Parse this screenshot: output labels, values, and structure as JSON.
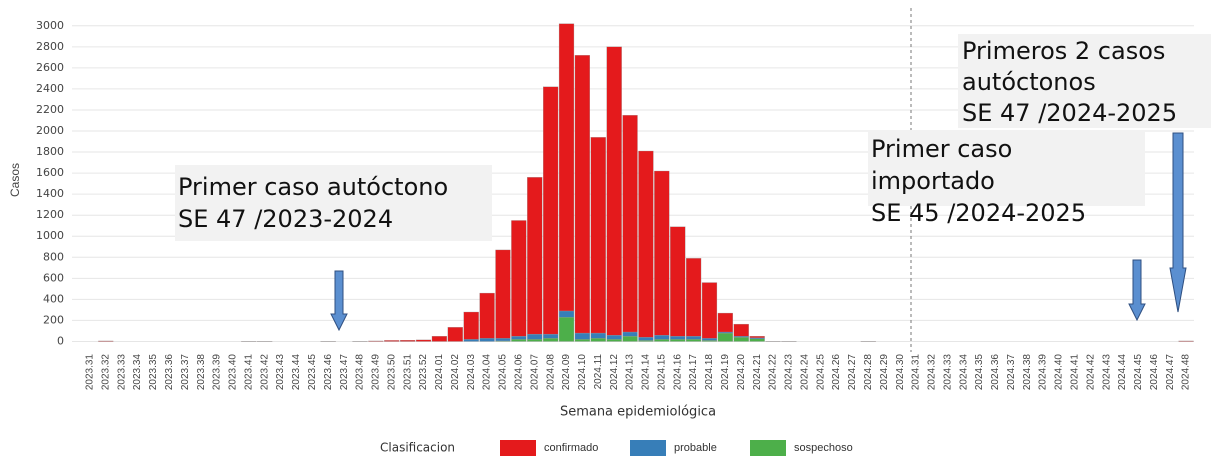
{
  "chart_data": {
    "type": "stacked-bar",
    "ylabel": "Casos",
    "xlabel": "Semana epidemiológica",
    "legend_title": "Clasificacion",
    "categories": [
      "2023.31",
      "2023.32",
      "2023.33",
      "2023.34",
      "2023.35",
      "2023.36",
      "2023.37",
      "2023.38",
      "2023.39",
      "2023.40",
      "2023.41",
      "2023.42",
      "2023.43",
      "2023.44",
      "2023.45",
      "2023.46",
      "2023.47",
      "2023.48",
      "2023.49",
      "2023.50",
      "2023.51",
      "2023.52",
      "2024.01",
      "2024.02",
      "2024.03",
      "2024.04",
      "2024.05",
      "2024.06",
      "2024.07",
      "2024.08",
      "2024.09",
      "2024.10",
      "2024.11",
      "2024.12",
      "2024.13",
      "2024.14",
      "2024.15",
      "2024.16",
      "2024.17",
      "2024.18",
      "2024.19",
      "2024.20",
      "2024.21",
      "2024.22",
      "2024.23",
      "2024.24",
      "2024.25",
      "2024.26",
      "2024.27",
      "2024.28",
      "2024.29",
      "2024.30",
      "2024.31",
      "2024.32",
      "2024.33",
      "2024.34",
      "2024.35",
      "2024.36",
      "2024.37",
      "2024.38",
      "2024.39",
      "2024.40",
      "2024.41",
      "2024.42",
      "2024.43",
      "2024.44",
      "2024.45",
      "2024.46",
      "2024.47",
      "2024.48"
    ],
    "series": [
      {
        "name": "sospechoso",
        "color": "#4daf4a",
        "values": [
          0,
          0,
          0,
          0,
          0,
          0,
          0,
          0,
          0,
          0,
          0,
          0,
          0,
          0,
          0,
          0,
          0,
          0,
          0,
          0,
          0,
          0,
          0,
          0,
          0,
          0,
          5,
          20,
          20,
          30,
          230,
          20,
          30,
          20,
          50,
          10,
          20,
          20,
          20,
          10,
          80,
          40,
          25,
          0,
          0,
          0,
          0,
          0,
          0,
          0,
          0,
          0,
          0,
          0,
          0,
          0,
          0,
          0,
          0,
          0,
          0,
          0,
          0,
          0,
          0,
          0,
          0,
          0,
          0,
          0
        ]
      },
      {
        "name": "probable",
        "color": "#377eb8",
        "values": [
          0,
          0,
          0,
          0,
          0,
          0,
          0,
          0,
          0,
          0,
          0,
          0,
          0,
          0,
          0,
          0,
          0,
          0,
          0,
          0,
          0,
          0,
          0,
          0,
          20,
          30,
          25,
          30,
          50,
          40,
          60,
          60,
          50,
          40,
          40,
          30,
          40,
          30,
          30,
          20,
          10,
          10,
          10,
          0,
          0,
          0,
          0,
          0,
          0,
          0,
          0,
          0,
          0,
          0,
          0,
          0,
          0,
          0,
          0,
          0,
          0,
          0,
          0,
          0,
          0,
          0,
          0,
          0,
          0,
          0
        ]
      },
      {
        "name": "confirmado",
        "color": "#e41a1c",
        "values": [
          0,
          5,
          0,
          0,
          0,
          0,
          0,
          0,
          0,
          0,
          3,
          3,
          0,
          0,
          0,
          3,
          0,
          3,
          5,
          10,
          12,
          15,
          50,
          135,
          260,
          430,
          840,
          1100,
          1490,
          2350,
          2730,
          2640,
          1860,
          2740,
          2060,
          1770,
          1560,
          1040,
          740,
          530,
          180,
          115,
          15,
          3,
          3,
          0,
          0,
          0,
          0,
          3,
          0,
          0,
          0,
          0,
          0,
          0,
          0,
          0,
          0,
          0,
          0,
          0,
          0,
          0,
          0,
          0,
          0,
          0,
          0,
          5
        ]
      }
    ],
    "legend_order": [
      "confirmado",
      "probable",
      "sospechoso"
    ],
    "ylim": [
      -100,
      3150
    ],
    "yticks": [
      0,
      200,
      400,
      600,
      800,
      1000,
      1200,
      1400,
      1600,
      1800,
      2000,
      2200,
      2400,
      2600,
      2800,
      3000
    ],
    "grid": true,
    "annotations": [
      [
        "Primer caso autóctono",
        "SE 47 /2023-2024"
      ],
      [
        "Primer caso",
        "importado",
        "SE 45 /2024-2025"
      ],
      [
        "Primeros 2 casos",
        "autóctonos",
        "SE 47 /2024-2025"
      ]
    ]
  }
}
